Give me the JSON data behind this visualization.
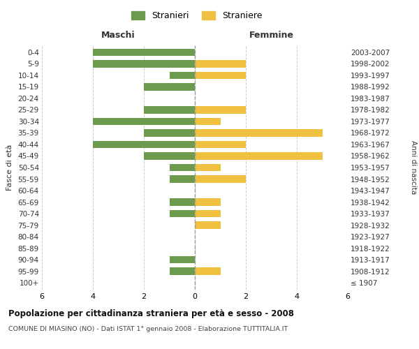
{
  "age_groups": [
    "100+",
    "95-99",
    "90-94",
    "85-89",
    "80-84",
    "75-79",
    "70-74",
    "65-69",
    "60-64",
    "55-59",
    "50-54",
    "45-49",
    "40-44",
    "35-39",
    "30-34",
    "25-29",
    "20-24",
    "15-19",
    "10-14",
    "5-9",
    "0-4"
  ],
  "birth_years": [
    "≤ 1907",
    "1908-1912",
    "1913-1917",
    "1918-1922",
    "1923-1927",
    "1928-1932",
    "1933-1937",
    "1938-1942",
    "1943-1947",
    "1948-1952",
    "1953-1957",
    "1958-1962",
    "1963-1967",
    "1968-1972",
    "1973-1977",
    "1978-1982",
    "1983-1987",
    "1988-1992",
    "1993-1997",
    "1998-2002",
    "2003-2007"
  ],
  "maschi": [
    0,
    1,
    1,
    0,
    0,
    0,
    1,
    1,
    0,
    1,
    1,
    2,
    4,
    2,
    4,
    2,
    0,
    2,
    1,
    4,
    4
  ],
  "femmine": [
    0,
    1,
    0,
    0,
    0,
    1,
    1,
    1,
    0,
    2,
    1,
    5,
    2,
    5,
    1,
    2,
    0,
    0,
    2,
    2,
    0
  ],
  "maschi_color": "#6d9b4e",
  "femmine_color": "#f0c040",
  "title": "Popolazione per cittadinanza straniera per età e sesso - 2008",
  "subtitle": "COMUNE DI MIASINO (NO) - Dati ISTAT 1° gennaio 2008 - Elaborazione TUTTITALIA.IT",
  "xlabel_left": "Maschi",
  "xlabel_right": "Femmine",
  "ylabel_left": "Fasce di età",
  "ylabel_right": "Anni di nascita",
  "legend_maschi": "Stranieri",
  "legend_femmine": "Straniere",
  "xlim": 6,
  "background_color": "#ffffff",
  "grid_color": "#cccccc"
}
